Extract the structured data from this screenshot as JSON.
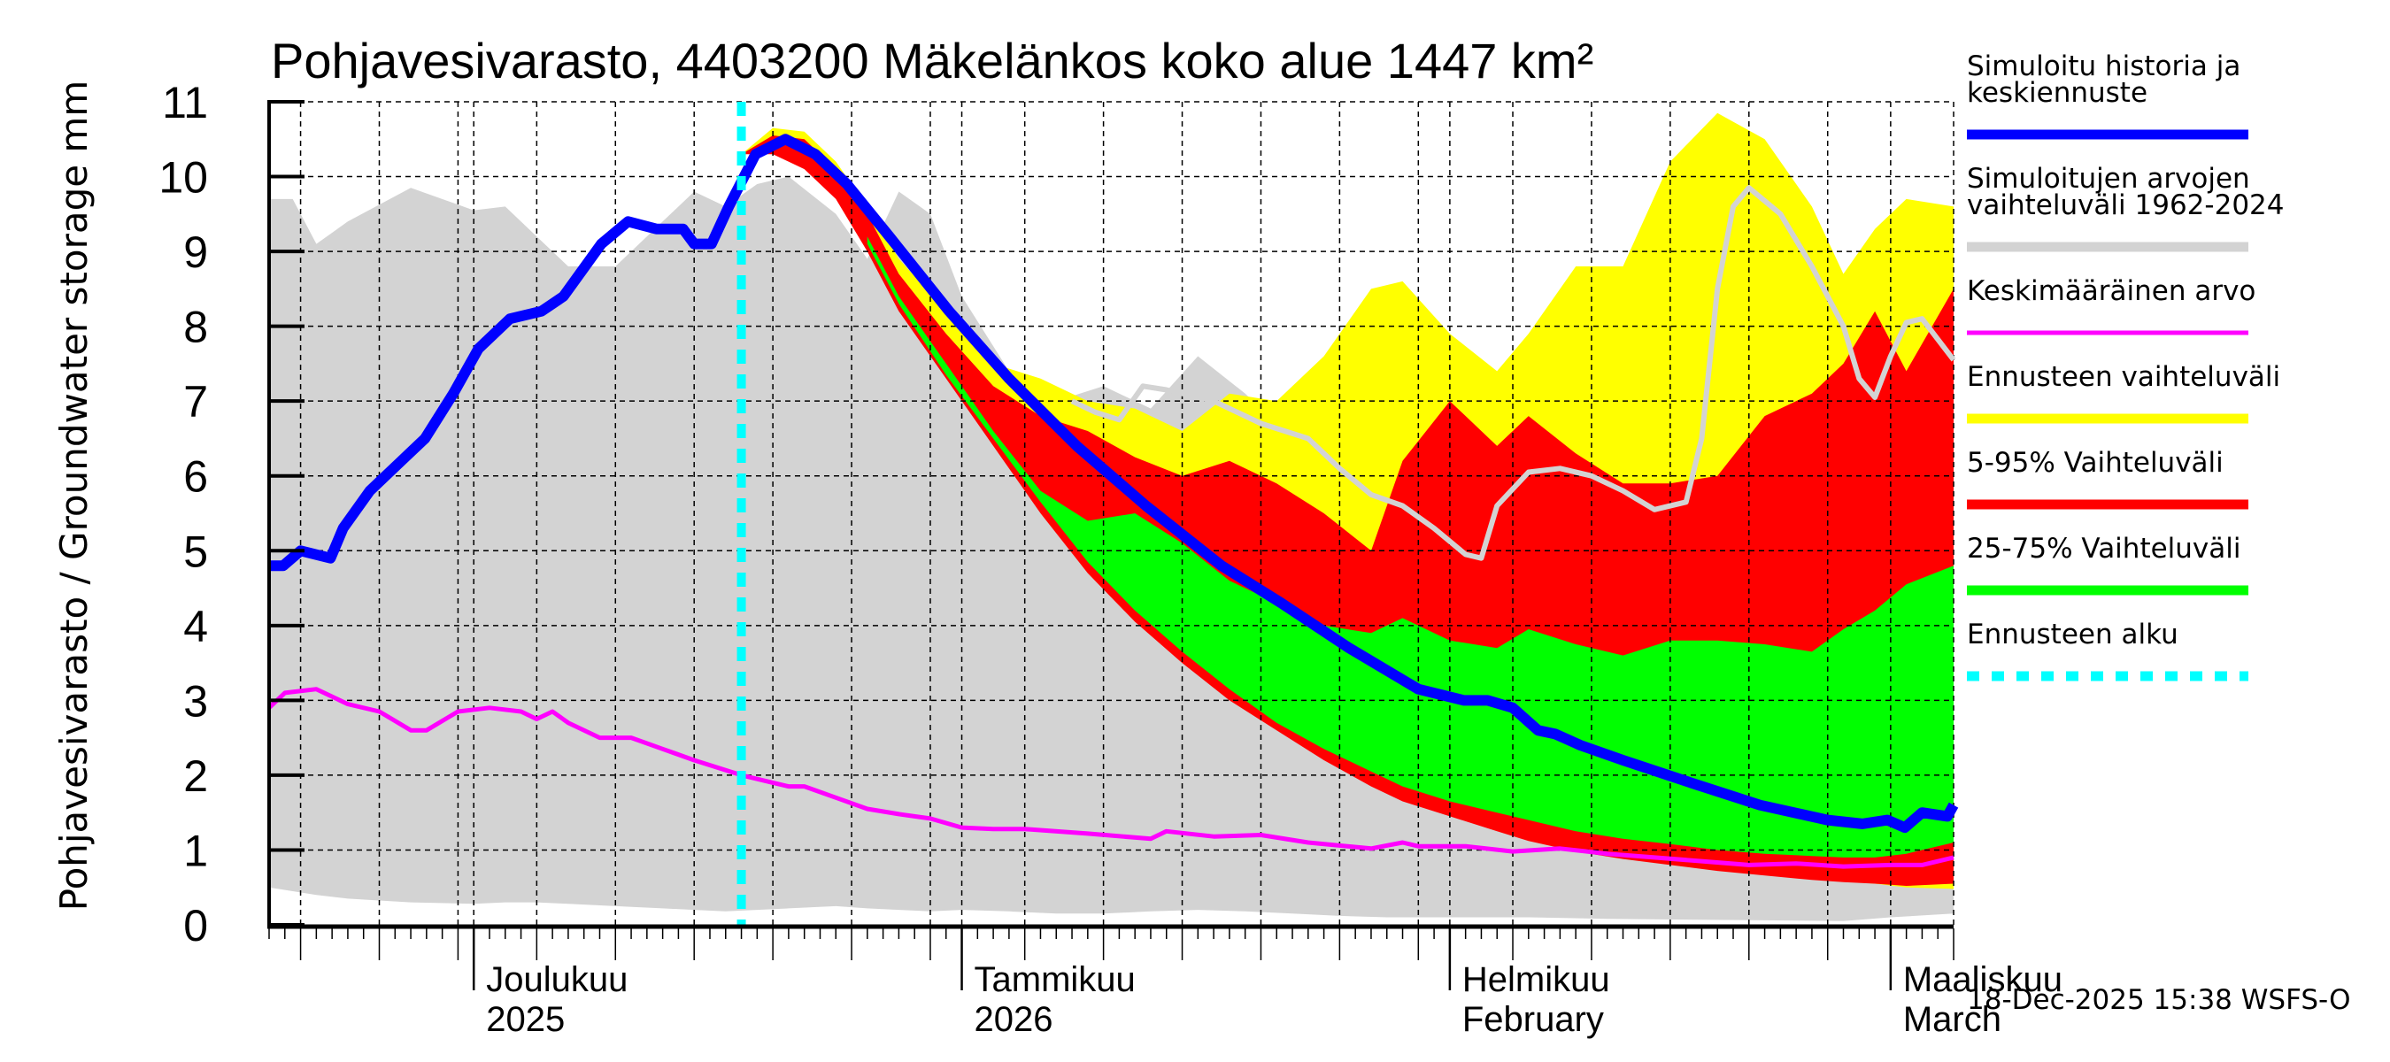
{
  "chart_data": {
    "type": "area",
    "title": "Pohjavesivarasto, 4403200 Mäkelänkos koko alue 1447 km²",
    "ylabel": "Pohjavesivarasto / Groundwater storage   mm",
    "xlabel": "",
    "ylim": [
      0,
      11
    ],
    "yticks": [
      0,
      1,
      2,
      3,
      4,
      5,
      6,
      7,
      8,
      9,
      10,
      11
    ],
    "x_unit": "days since 2025-11-18",
    "xlim": [
      0,
      107
    ],
    "grid": true,
    "month_ticks": [
      {
        "day": 13,
        "label1": "Joulukuu",
        "label2": "2025"
      },
      {
        "day": 44,
        "label1": "Tammikuu",
        "label2": "2026"
      },
      {
        "day": 75,
        "label1": "Helmikuu",
        "label2": "February"
      },
      {
        "day": 103,
        "label1": "Maaliskuu",
        "label2": "March"
      }
    ],
    "forecast_start_day": 30,
    "timestamp": "18-Dec-2025 15:38 WSFS-O",
    "legend_position": "right",
    "legend": [
      {
        "label": "Simuloitu historia ja keskiennuste",
        "color": "#0000ff",
        "style": "thick"
      },
      {
        "label": "Simuloitujen arvojen vaihteluväli 1962-2024",
        "color": "#d3d3d3",
        "style": "thick"
      },
      {
        "label": "Keskimääräinen arvo",
        "color": "#ff00ff",
        "style": "thin"
      },
      {
        "label": "Ennusteen vaihteluväli",
        "color": "#ffff00",
        "style": "thick"
      },
      {
        "label": "5-95% Vaihteluväli",
        "color": "#ff0000",
        "style": "thick"
      },
      {
        "label": "25-75% Vaihteluväli",
        "color": "#00ff00",
        "style": "thick"
      },
      {
        "label": "Ennusteen alku",
        "color": "#00ffff",
        "style": "dashed"
      }
    ],
    "series": [
      {
        "name": "Simuloitujen arvojen vaihteluväli 1962-2024",
        "kind": "band",
        "color": "#d3d3d3",
        "x": [
          0,
          1.5,
          3,
          5,
          9,
          13,
          15,
          17,
          19,
          22,
          25,
          27,
          29,
          31,
          33,
          36,
          38,
          40,
          42,
          44,
          47,
          50,
          53,
          56,
          59,
          62,
          65,
          68,
          71,
          75,
          80,
          85,
          90,
          95,
          100,
          103,
          107
        ],
        "upper": [
          9.7,
          9.7,
          9.1,
          9.4,
          9.85,
          9.55,
          9.6,
          9.2,
          8.8,
          8.8,
          9.4,
          9.8,
          9.6,
          9.9,
          10.0,
          9.5,
          8.9,
          9.8,
          9.5,
          8.4,
          7.4,
          7.0,
          7.2,
          6.9,
          7.6,
          7.1,
          6.5,
          6.0,
          5.7,
          5.2,
          4.5,
          3.8,
          3.0,
          2.2,
          1.5,
          1.2,
          1.0
        ],
        "lower": [
          0.5,
          0.45,
          0.4,
          0.35,
          0.3,
          0.28,
          0.3,
          0.3,
          0.28,
          0.25,
          0.22,
          0.2,
          0.18,
          0.2,
          0.22,
          0.25,
          0.22,
          0.2,
          0.18,
          0.2,
          0.18,
          0.15,
          0.15,
          0.18,
          0.2,
          0.18,
          0.15,
          0.12,
          0.1,
          0.1,
          0.1,
          0.08,
          0.07,
          0.06,
          0.05,
          0.1,
          0.15
        ]
      },
      {
        "name": "Ennusteen vaihteluväli",
        "kind": "band",
        "color": "#ffff00",
        "x": [
          30,
          32,
          34,
          36,
          38,
          40,
          43,
          46,
          49,
          52,
          55,
          58,
          61,
          64,
          67,
          70,
          72,
          75,
          78,
          80,
          83,
          86,
          89,
          92,
          95,
          98,
          100,
          102,
          104,
          107
        ],
        "upper": [
          10.3,
          10.65,
          10.6,
          10.2,
          9.6,
          8.9,
          8.2,
          7.5,
          7.3,
          7.0,
          6.9,
          6.6,
          7.1,
          7.0,
          7.6,
          8.5,
          8.6,
          7.9,
          7.4,
          7.9,
          8.8,
          8.8,
          10.2,
          10.85,
          10.5,
          9.6,
          8.7,
          9.3,
          9.7,
          9.6
        ],
        "lower": [
          10.3,
          10.35,
          10.2,
          9.8,
          9.2,
          8.4,
          7.5,
          6.5,
          5.6,
          4.8,
          4.15,
          3.6,
          3.1,
          2.7,
          2.3,
          1.95,
          1.75,
          1.55,
          1.35,
          1.2,
          1.05,
          0.95,
          0.85,
          0.75,
          0.68,
          0.62,
          0.58,
          0.55,
          0.5,
          0.48
        ]
      },
      {
        "name": "5-95% Vaihteluväli",
        "kind": "band",
        "color": "#ff0000",
        "x": [
          30,
          32,
          34,
          36,
          38,
          40,
          43,
          46,
          49,
          52,
          55,
          58,
          61,
          64,
          67,
          70,
          72,
          75,
          78,
          80,
          83,
          86,
          89,
          92,
          95,
          98,
          100,
          102,
          104,
          107
        ],
        "upper": [
          10.3,
          10.55,
          10.5,
          10.1,
          9.5,
          8.7,
          7.9,
          7.2,
          6.8,
          6.6,
          6.25,
          6.0,
          6.2,
          5.9,
          5.5,
          5.0,
          6.2,
          7.0,
          6.4,
          6.8,
          6.3,
          5.9,
          5.9,
          6.0,
          6.8,
          7.1,
          7.5,
          8.2,
          7.4,
          8.5
        ],
        "lower": [
          10.3,
          10.3,
          10.1,
          9.7,
          9.0,
          8.2,
          7.3,
          6.4,
          5.5,
          4.7,
          4.05,
          3.5,
          3.0,
          2.6,
          2.2,
          1.85,
          1.65,
          1.45,
          1.25,
          1.12,
          0.98,
          0.88,
          0.8,
          0.72,
          0.66,
          0.6,
          0.57,
          0.55,
          0.52,
          0.55
        ]
      },
      {
        "name": "25-75% Vaihteluväli",
        "kind": "band",
        "color": "#00ff00",
        "x": [
          38,
          40,
          43,
          46,
          49,
          52,
          55,
          58,
          61,
          64,
          67,
          70,
          72,
          75,
          78,
          80,
          83,
          86,
          89,
          92,
          95,
          98,
          100,
          102,
          104,
          107
        ],
        "upper": [
          9.2,
          8.4,
          7.5,
          6.6,
          5.8,
          5.4,
          5.5,
          5.1,
          4.6,
          4.3,
          4.0,
          3.9,
          4.1,
          3.8,
          3.7,
          3.95,
          3.75,
          3.6,
          3.8,
          3.8,
          3.75,
          3.65,
          3.95,
          4.2,
          4.55,
          4.8
        ],
        "lower": [
          9.1,
          8.3,
          7.35,
          6.5,
          5.65,
          4.85,
          4.2,
          3.65,
          3.15,
          2.7,
          2.35,
          2.05,
          1.85,
          1.65,
          1.5,
          1.4,
          1.25,
          1.15,
          1.08,
          1.0,
          0.95,
          0.92,
          0.9,
          0.9,
          0.95,
          1.1
        ]
      },
      {
        "name": "Simuloitu historia ja keskiennuste",
        "kind": "line",
        "color": "#0000ff",
        "x": [
          0,
          0.9,
          2,
          3.9,
          4.7,
          6.4,
          8.4,
          9.9,
          11.7,
          13.3,
          15.3,
          17.3,
          18.7,
          21.1,
          22.8,
          24.6,
          26.3,
          27,
          28.1,
          29.2,
          30.9,
          32.8,
          34.7,
          36.7,
          39.4,
          43.2,
          47,
          51.3,
          55.7,
          60.5,
          64.3,
          68.6,
          73,
          75.9,
          77.4,
          79,
          80.6,
          81.7,
          83.3,
          86,
          90.3,
          94.7,
          99,
          101.2,
          102.8,
          103.9,
          105,
          106.6,
          107
        ],
        "values": [
          4.8,
          4.8,
          5.0,
          4.9,
          5.3,
          5.8,
          6.2,
          6.5,
          7.1,
          7.7,
          8.1,
          8.2,
          8.4,
          9.1,
          9.4,
          9.3,
          9.3,
          9.1,
          9.1,
          9.6,
          10.3,
          10.5,
          10.3,
          9.9,
          9.2,
          8.2,
          7.3,
          6.4,
          5.6,
          4.8,
          4.3,
          3.7,
          3.15,
          3.0,
          3.0,
          2.9,
          2.6,
          2.55,
          2.4,
          2.2,
          1.9,
          1.6,
          1.4,
          1.35,
          1.4,
          1.3,
          1.5,
          1.45,
          1.6
        ]
      },
      {
        "name": "Simuloitu historia ja keskiennuste (tail)",
        "kind": "line",
        "color": "#0000ff",
        "x": [
          107
        ],
        "values": [
          1.6
        ]
      },
      {
        "name": "Keskimääräinen arvo",
        "kind": "line",
        "color": "#ff00ff",
        "x": [
          0,
          1,
          3,
          5,
          7,
          9,
          10,
          12,
          14,
          16,
          17,
          18,
          19,
          21,
          23,
          25,
          27,
          30,
          32,
          33,
          34,
          36,
          38,
          40,
          42,
          44,
          46,
          48,
          52,
          56,
          57,
          60,
          63,
          66,
          70,
          72,
          73,
          76,
          79,
          82,
          85,
          88,
          91,
          94,
          97,
          100,
          103,
          105,
          107
        ],
        "values": [
          2.9,
          3.1,
          3.15,
          2.95,
          2.85,
          2.6,
          2.6,
          2.85,
          2.9,
          2.85,
          2.75,
          2.85,
          2.7,
          2.5,
          2.5,
          2.35,
          2.2,
          2.0,
          1.9,
          1.85,
          1.85,
          1.7,
          1.55,
          1.48,
          1.42,
          1.3,
          1.28,
          1.28,
          1.22,
          1.15,
          1.25,
          1.18,
          1.2,
          1.1,
          1.02,
          1.1,
          1.05,
          1.05,
          0.98,
          1.02,
          0.95,
          0.9,
          0.85,
          0.8,
          0.82,
          0.78,
          0.8,
          0.8,
          0.9
        ]
      },
      {
        "name": "Simuloitujen arvojen vaihteluväli (historical median line)",
        "kind": "line",
        "color": "#d3d3d3",
        "x": [
          51,
          52.5,
          54,
          55.5,
          57,
          60,
          63,
          66,
          68,
          70,
          72,
          74,
          76,
          77,
          78,
          80,
          82,
          84,
          86,
          88,
          90,
          91,
          92,
          93,
          94,
          96,
          98,
          100,
          101,
          102,
          103,
          104,
          105,
          107
        ],
        "values": [
          7.0,
          6.85,
          6.75,
          7.2,
          7.15,
          7.0,
          6.7,
          6.5,
          6.1,
          5.75,
          5.6,
          5.3,
          4.95,
          4.9,
          5.6,
          6.05,
          6.1,
          6.0,
          5.8,
          5.55,
          5.65,
          6.5,
          8.5,
          9.6,
          9.85,
          9.5,
          8.8,
          8.0,
          7.3,
          7.05,
          7.6,
          8.05,
          8.1,
          7.55
        ]
      }
    ]
  }
}
